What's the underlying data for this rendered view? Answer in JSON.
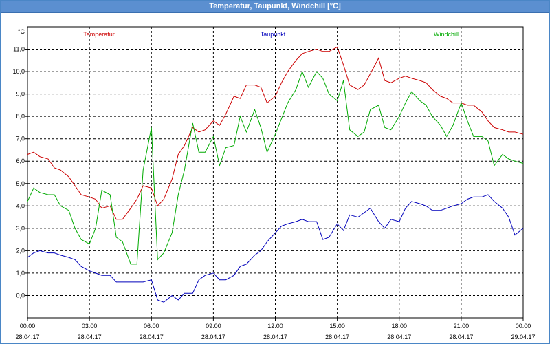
{
  "window": {
    "title": "Temperatur, Taupunkt, Windchill [°C]"
  },
  "chart_data": {
    "type": "line",
    "title": "Temperatur, Taupunkt, Windchill [°C]",
    "ylabel": "°C",
    "xlabel": "",
    "ylim": [
      -1.0,
      12.0
    ],
    "xlim": [
      0,
      24
    ],
    "yticks": [
      0.0,
      1.0,
      2.0,
      3.0,
      4.0,
      5.0,
      6.0,
      7.0,
      8.0,
      9.0,
      10.0,
      11.0
    ],
    "ytick_labels": [
      "0,0",
      "1,0",
      "2,0",
      "3,0",
      "4,0",
      "5,0",
      "6,0",
      "7,0",
      "8,0",
      "9,0",
      "10,0",
      "11,0"
    ],
    "xticks": [
      0,
      3,
      6,
      9,
      12,
      15,
      18,
      21,
      24
    ],
    "xtick_times": [
      "00:00",
      "03:00",
      "06:00",
      "09:00",
      "12:00",
      "15:00",
      "18:00",
      "21:00",
      "00:00"
    ],
    "xtick_dates": [
      "28.04.17",
      "28.04.17",
      "28.04.17",
      "28.04.17",
      "28.04.17",
      "28.04.17",
      "28.04.17",
      "28.04.17",
      "29.04.17"
    ],
    "grid": true,
    "series": [
      {
        "name": "Temperatur",
        "color": "#cc0000",
        "x": [
          0,
          0.3,
          0.6,
          1,
          1.3,
          1.6,
          2,
          2.3,
          2.6,
          3,
          3.3,
          3.6,
          4,
          4.3,
          4.6,
          5,
          5.3,
          5.6,
          6,
          6.3,
          6.6,
          7,
          7.3,
          7.6,
          8,
          8.3,
          8.6,
          9,
          9.3,
          9.6,
          10,
          10.3,
          10.6,
          11,
          11.3,
          11.6,
          12,
          12.3,
          12.6,
          13,
          13.3,
          13.6,
          14,
          14.3,
          14.6,
          15,
          15.3,
          15.6,
          16,
          16.3,
          16.6,
          17,
          17.3,
          17.6,
          18,
          18.3,
          18.6,
          19,
          19.3,
          19.6,
          20,
          20.3,
          20.6,
          21,
          21.3,
          21.6,
          22,
          22.3,
          22.6,
          23,
          23.3,
          23.6,
          24
        ],
        "values": [
          6.3,
          6.4,
          6.2,
          6.1,
          5.7,
          5.6,
          5.3,
          4.9,
          4.5,
          4.4,
          4.3,
          3.9,
          4.0,
          3.4,
          3.4,
          3.9,
          4.3,
          4.9,
          4.8,
          4.0,
          4.3,
          5.2,
          6.3,
          6.7,
          7.5,
          7.3,
          7.4,
          7.8,
          7.6,
          8.1,
          8.9,
          8.8,
          9.4,
          9.4,
          9.3,
          8.6,
          8.9,
          9.5,
          10.0,
          10.5,
          10.8,
          10.9,
          11.0,
          10.9,
          10.9,
          11.1,
          10.3,
          9.4,
          9.2,
          9.4,
          9.9,
          10.6,
          9.6,
          9.5,
          9.7,
          9.8,
          9.7,
          9.6,
          9.5,
          9.2,
          8.9,
          8.8,
          8.6,
          8.6,
          8.5,
          8.5,
          8.2,
          7.8,
          7.5,
          7.4,
          7.3,
          7.3,
          7.2
        ]
      },
      {
        "name": "Taupunkt",
        "color": "#0000bb",
        "x": [
          0,
          0.3,
          0.6,
          1,
          1.3,
          1.6,
          2,
          2.3,
          2.6,
          3,
          3.3,
          3.6,
          4,
          4.3,
          4.6,
          5,
          5.3,
          5.6,
          6,
          6.3,
          6.6,
          7,
          7.3,
          7.6,
          8,
          8.3,
          8.6,
          9,
          9.3,
          9.6,
          10,
          10.3,
          10.6,
          11,
          11.3,
          11.6,
          12,
          12.3,
          12.6,
          13,
          13.3,
          13.6,
          14,
          14.3,
          14.6,
          15,
          15.3,
          15.6,
          16,
          16.3,
          16.6,
          17,
          17.3,
          17.6,
          18,
          18.3,
          18.6,
          19,
          19.3,
          19.6,
          20,
          20.3,
          20.6,
          21,
          21.3,
          21.6,
          22,
          22.3,
          22.6,
          23,
          23.3,
          23.6,
          24
        ],
        "values": [
          1.7,
          1.9,
          2.0,
          1.9,
          1.9,
          1.8,
          1.7,
          1.6,
          1.3,
          1.1,
          1.0,
          0.9,
          0.9,
          0.6,
          0.6,
          0.6,
          0.6,
          0.6,
          0.7,
          -0.2,
          -0.3,
          0.0,
          -0.2,
          0.1,
          0.1,
          0.7,
          0.9,
          1.0,
          0.7,
          0.7,
          0.9,
          1.3,
          1.4,
          1.8,
          2.0,
          2.4,
          2.8,
          3.1,
          3.2,
          3.3,
          3.4,
          3.3,
          3.3,
          2.5,
          2.6,
          3.2,
          2.9,
          3.6,
          3.5,
          3.7,
          3.9,
          3.3,
          3.0,
          3.4,
          3.3,
          3.9,
          4.2,
          4.1,
          4.0,
          3.8,
          3.8,
          3.9,
          4.0,
          4.1,
          4.3,
          4.4,
          4.4,
          4.5,
          4.2,
          3.9,
          3.5,
          2.7,
          3.0
        ]
      },
      {
        "name": "Windchill",
        "color": "#00aa00",
        "x": [
          0,
          0.3,
          0.6,
          1,
          1.3,
          1.6,
          2,
          2.3,
          2.6,
          3,
          3.3,
          3.6,
          4,
          4.3,
          4.6,
          5,
          5.3,
          5.6,
          6,
          6.3,
          6.6,
          7,
          7.3,
          7.6,
          8,
          8.3,
          8.6,
          9,
          9.3,
          9.6,
          10,
          10.3,
          10.6,
          11,
          11.3,
          11.6,
          12,
          12.3,
          12.6,
          13,
          13.3,
          13.6,
          14,
          14.3,
          14.6,
          15,
          15.3,
          15.6,
          16,
          16.3,
          16.6,
          17,
          17.3,
          17.6,
          18,
          18.3,
          18.6,
          19,
          19.3,
          19.6,
          20,
          20.3,
          20.6,
          21,
          21.3,
          21.6,
          22,
          22.3,
          22.6,
          23,
          23.3,
          23.6,
          24
        ],
        "values": [
          4.2,
          4.8,
          4.6,
          4.5,
          4.5,
          4.0,
          3.8,
          3.0,
          2.5,
          2.3,
          3.0,
          4.7,
          4.5,
          2.6,
          2.4,
          1.4,
          1.4,
          5.6,
          7.5,
          1.6,
          1.9,
          2.8,
          4.5,
          5.6,
          7.7,
          6.4,
          6.4,
          7.1,
          5.8,
          6.6,
          6.7,
          8.0,
          7.3,
          8.3,
          7.5,
          6.4,
          7.2,
          7.9,
          8.6,
          9.2,
          10.0,
          9.3,
          10.0,
          9.7,
          9.0,
          8.7,
          9.6,
          7.4,
          7.1,
          7.3,
          8.3,
          8.5,
          7.5,
          7.4,
          8.0,
          8.6,
          9.1,
          8.7,
          8.5,
          8.0,
          7.6,
          7.1,
          7.6,
          8.6,
          7.8,
          7.1,
          7.1,
          6.9,
          5.8,
          6.3,
          6.1,
          6.0,
          5.9
        ]
      }
    ]
  }
}
